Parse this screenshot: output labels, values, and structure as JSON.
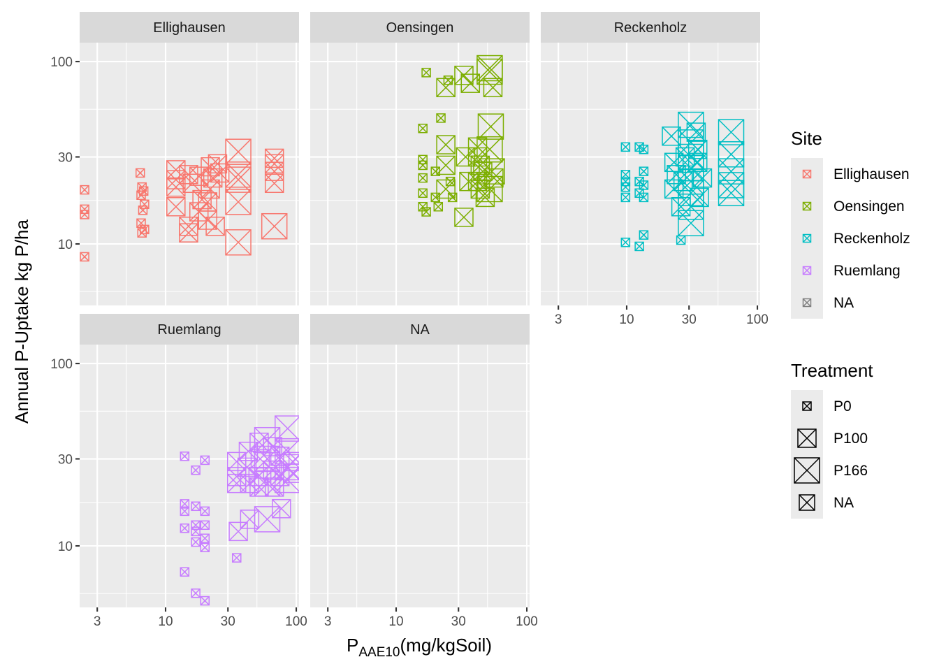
{
  "chart_data": {
    "type": "scatter",
    "facet_by": "Site",
    "x_scale": "log10",
    "y_scale": "log10",
    "xlabel": "P",
    "xlabel_sub": "AAE10",
    "xlabel_suffix": "(mg/kgSoil)",
    "ylabel": "Annual P-Uptake kg P/ha",
    "xlim": [
      2.2,
      105
    ],
    "ylim": [
      4.6,
      127
    ],
    "x_ticks": [
      3,
      10,
      30,
      100
    ],
    "x_tick_labels": [
      "3",
      "10",
      "30",
      "100"
    ],
    "y_ticks": [
      10,
      30,
      100
    ],
    "y_tick_labels": [
      "10",
      "30",
      "100"
    ],
    "panels": [
      {
        "name": "Ellighausen",
        "color": "#F8766D",
        "points": [
          {
            "x": 2.4,
            "y": 19.8,
            "t": "P0"
          },
          {
            "x": 2.4,
            "y": 15.5,
            "t": "P0"
          },
          {
            "x": 2.4,
            "y": 14.5,
            "t": "P0"
          },
          {
            "x": 2.4,
            "y": 8.5,
            "t": "P0"
          },
          {
            "x": 6.4,
            "y": 24.5,
            "t": "P0"
          },
          {
            "x": 6.6,
            "y": 20.5,
            "t": "P0"
          },
          {
            "x": 6.8,
            "y": 19.5,
            "t": "P0"
          },
          {
            "x": 6.5,
            "y": 18.5,
            "t": "P0"
          },
          {
            "x": 6.9,
            "y": 16.5,
            "t": "P0"
          },
          {
            "x": 6.7,
            "y": 15.3,
            "t": "P0"
          },
          {
            "x": 6.5,
            "y": 13.0,
            "t": "P0"
          },
          {
            "x": 6.9,
            "y": 12.0,
            "t": "P0"
          },
          {
            "x": 6.6,
            "y": 11.5,
            "t": "P0"
          },
          {
            "x": 12,
            "y": 25.5,
            "t": "P100"
          },
          {
            "x": 12,
            "y": 22.5,
            "t": "P100"
          },
          {
            "x": 12,
            "y": 20.5,
            "t": "P100"
          },
          {
            "x": 12,
            "y": 16.0,
            "t": "P100"
          },
          {
            "x": 15,
            "y": 24.0,
            "t": "P100"
          },
          {
            "x": 16,
            "y": 21.5,
            "t": "P100"
          },
          {
            "x": 15,
            "y": 12.5,
            "t": "P100"
          },
          {
            "x": 15,
            "y": 11.5,
            "t": "P100"
          },
          {
            "x": 18,
            "y": 23.5,
            "t": "P100"
          },
          {
            "x": 19,
            "y": 17.5,
            "t": "P100"
          },
          {
            "x": 18,
            "y": 15.0,
            "t": "P100"
          },
          {
            "x": 21,
            "y": 13.5,
            "t": "P100"
          },
          {
            "x": 22,
            "y": 26.5,
            "t": "P100"
          },
          {
            "x": 23,
            "y": 23.0,
            "t": "P100"
          },
          {
            "x": 22,
            "y": 20.0,
            "t": "P100"
          },
          {
            "x": 25,
            "y": 27.5,
            "t": "P100"
          },
          {
            "x": 26,
            "y": 24.5,
            "t": "P100"
          },
          {
            "x": 24,
            "y": 12.5,
            "t": "P100"
          },
          {
            "x": 21,
            "y": 17.0,
            "t": "P100"
          },
          {
            "x": 36,
            "y": 32.0,
            "t": "P166"
          },
          {
            "x": 36,
            "y": 24.0,
            "t": "P166"
          },
          {
            "x": 36,
            "y": 22.5,
            "t": "P166"
          },
          {
            "x": 36,
            "y": 17.0,
            "t": "P166"
          },
          {
            "x": 36,
            "y": 10.2,
            "t": "P166"
          },
          {
            "x": 68,
            "y": 29.5,
            "t": "P100"
          },
          {
            "x": 68,
            "y": 27.5,
            "t": "P100"
          },
          {
            "x": 68,
            "y": 25.0,
            "t": "P100"
          },
          {
            "x": 68,
            "y": 21.5,
            "t": "P100"
          },
          {
            "x": 68,
            "y": 12.5,
            "t": "P166"
          }
        ]
      },
      {
        "name": "Oensingen",
        "color": "#7CAE00",
        "points": [
          {
            "x": 17,
            "y": 87,
            "t": "P0"
          },
          {
            "x": 16,
            "y": 43,
            "t": "P0"
          },
          {
            "x": 16,
            "y": 29,
            "t": "P0"
          },
          {
            "x": 16,
            "y": 27,
            "t": "P0"
          },
          {
            "x": 16,
            "y": 23,
            "t": "P0"
          },
          {
            "x": 16,
            "y": 19,
            "t": "P0"
          },
          {
            "x": 16,
            "y": 16,
            "t": "P0"
          },
          {
            "x": 17,
            "y": 15,
            "t": "P0"
          },
          {
            "x": 22,
            "y": 49,
            "t": "P0"
          },
          {
            "x": 20,
            "y": 25,
            "t": "P0"
          },
          {
            "x": 20,
            "y": 18,
            "t": "P0"
          },
          {
            "x": 21,
            "y": 16,
            "t": "P0"
          },
          {
            "x": 25,
            "y": 79,
            "t": "P0"
          },
          {
            "x": 26,
            "y": 22,
            "t": "P0"
          },
          {
            "x": 27,
            "y": 18,
            "t": "P0"
          },
          {
            "x": 24,
            "y": 72,
            "t": "P100"
          },
          {
            "x": 24,
            "y": 35,
            "t": "P100"
          },
          {
            "x": 24,
            "y": 27,
            "t": "P100"
          },
          {
            "x": 24,
            "y": 20,
            "t": "P100"
          },
          {
            "x": 33,
            "y": 84,
            "t": "P100"
          },
          {
            "x": 37,
            "y": 76,
            "t": "P100"
          },
          {
            "x": 34,
            "y": 30,
            "t": "P100"
          },
          {
            "x": 36,
            "y": 22,
            "t": "P100"
          },
          {
            "x": 33,
            "y": 14,
            "t": "P100"
          },
          {
            "x": 42,
            "y": 34,
            "t": "P100"
          },
          {
            "x": 42,
            "y": 30,
            "t": "P100"
          },
          {
            "x": 44,
            "y": 27,
            "t": "P100"
          },
          {
            "x": 42,
            "y": 22,
            "t": "P100"
          },
          {
            "x": 46,
            "y": 25,
            "t": "P100"
          },
          {
            "x": 44,
            "y": 20,
            "t": "P100"
          },
          {
            "x": 48,
            "y": 18,
            "t": "P100"
          },
          {
            "x": 52,
            "y": 92,
            "t": "P166"
          },
          {
            "x": 52,
            "y": 88,
            "t": "P166"
          },
          {
            "x": 55,
            "y": 72,
            "t": "P100"
          },
          {
            "x": 53,
            "y": 44,
            "t": "P166"
          },
          {
            "x": 52,
            "y": 33,
            "t": "P166"
          },
          {
            "x": 54,
            "y": 25,
            "t": "P166"
          },
          {
            "x": 52,
            "y": 20,
            "t": "P166"
          },
          {
            "x": 56,
            "y": 23,
            "t": "P100"
          }
        ]
      },
      {
        "name": "Reckenholz",
        "color": "#00BFC4",
        "points": [
          {
            "x": 9.8,
            "y": 34,
            "t": "P0"
          },
          {
            "x": 9.8,
            "y": 24,
            "t": "P0"
          },
          {
            "x": 9.8,
            "y": 22,
            "t": "P0"
          },
          {
            "x": 9.8,
            "y": 20.5,
            "t": "P0"
          },
          {
            "x": 9.8,
            "y": 18,
            "t": "P0"
          },
          {
            "x": 9.8,
            "y": 10.2,
            "t": "P0"
          },
          {
            "x": 12.5,
            "y": 34,
            "t": "P0"
          },
          {
            "x": 13.5,
            "y": 33,
            "t": "P0"
          },
          {
            "x": 13.5,
            "y": 25,
            "t": "P0"
          },
          {
            "x": 12.5,
            "y": 22,
            "t": "P0"
          },
          {
            "x": 13.5,
            "y": 21,
            "t": "P0"
          },
          {
            "x": 12.5,
            "y": 19,
            "t": "P0"
          },
          {
            "x": 13.5,
            "y": 18,
            "t": "P0"
          },
          {
            "x": 13.5,
            "y": 11.2,
            "t": "P0"
          },
          {
            "x": 12.5,
            "y": 9.7,
            "t": "P0"
          },
          {
            "x": 26,
            "y": 10.5,
            "t": "P0"
          },
          {
            "x": 22,
            "y": 39,
            "t": "P100"
          },
          {
            "x": 23,
            "y": 28,
            "t": "P100"
          },
          {
            "x": 24,
            "y": 24,
            "t": "P100"
          },
          {
            "x": 23,
            "y": 20,
            "t": "P100"
          },
          {
            "x": 28,
            "y": 30,
            "t": "P100"
          },
          {
            "x": 27,
            "y": 22,
            "t": "P100"
          },
          {
            "x": 26,
            "y": 16,
            "t": "P100"
          },
          {
            "x": 31,
            "y": 45,
            "t": "P166"
          },
          {
            "x": 31,
            "y": 36,
            "t": "P166"
          },
          {
            "x": 31,
            "y": 30,
            "t": "P166"
          },
          {
            "x": 31,
            "y": 26,
            "t": "P166"
          },
          {
            "x": 31,
            "y": 22,
            "t": "P166"
          },
          {
            "x": 31,
            "y": 19,
            "t": "P166"
          },
          {
            "x": 31,
            "y": 16,
            "t": "P166"
          },
          {
            "x": 31,
            "y": 13,
            "t": "P166"
          },
          {
            "x": 35,
            "y": 33,
            "t": "P100"
          },
          {
            "x": 35,
            "y": 28,
            "t": "P100"
          },
          {
            "x": 38,
            "y": 23,
            "t": "P100"
          },
          {
            "x": 36,
            "y": 18,
            "t": "P100"
          },
          {
            "x": 34,
            "y": 41,
            "t": "P100"
          },
          {
            "x": 63,
            "y": 41,
            "t": "P166"
          },
          {
            "x": 63,
            "y": 31,
            "t": "P166"
          },
          {
            "x": 63,
            "y": 25,
            "t": "P166"
          },
          {
            "x": 63,
            "y": 21,
            "t": "P166"
          },
          {
            "x": 63,
            "y": 19,
            "t": "P166"
          }
        ]
      },
      {
        "name": "Ruemlang",
        "color": "#C77CFF",
        "points": [
          {
            "x": 14,
            "y": 31,
            "t": "P0"
          },
          {
            "x": 14,
            "y": 17,
            "t": "P0"
          },
          {
            "x": 14,
            "y": 15.5,
            "t": "P0"
          },
          {
            "x": 14,
            "y": 12.5,
            "t": "P0"
          },
          {
            "x": 14,
            "y": 7.2,
            "t": "P0"
          },
          {
            "x": 17,
            "y": 26,
            "t": "P0"
          },
          {
            "x": 17,
            "y": 16.5,
            "t": "P0"
          },
          {
            "x": 17,
            "y": 13,
            "t": "P0"
          },
          {
            "x": 17,
            "y": 12,
            "t": "P0"
          },
          {
            "x": 17,
            "y": 10.5,
            "t": "P0"
          },
          {
            "x": 17,
            "y": 5.5,
            "t": "P0"
          },
          {
            "x": 20,
            "y": 29.5,
            "t": "P0"
          },
          {
            "x": 20,
            "y": 15.5,
            "t": "P0"
          },
          {
            "x": 20,
            "y": 13,
            "t": "P0"
          },
          {
            "x": 20,
            "y": 11,
            "t": "P0"
          },
          {
            "x": 20,
            "y": 9.8,
            "t": "P0"
          },
          {
            "x": 20,
            "y": 5.0,
            "t": "P0"
          },
          {
            "x": 35,
            "y": 8.6,
            "t": "P0"
          },
          {
            "x": 35,
            "y": 29,
            "t": "P100"
          },
          {
            "x": 35,
            "y": 24,
            "t": "P100"
          },
          {
            "x": 35,
            "y": 22,
            "t": "P100"
          },
          {
            "x": 36,
            "y": 12,
            "t": "P100"
          },
          {
            "x": 43,
            "y": 33,
            "t": "P100"
          },
          {
            "x": 42,
            "y": 27,
            "t": "P100"
          },
          {
            "x": 44,
            "y": 22,
            "t": "P100"
          },
          {
            "x": 44,
            "y": 14,
            "t": "P100"
          },
          {
            "x": 52,
            "y": 37,
            "t": "P100"
          },
          {
            "x": 53,
            "y": 30,
            "t": "P100"
          },
          {
            "x": 51,
            "y": 24,
            "t": "P100"
          },
          {
            "x": 52,
            "y": 21,
            "t": "P100"
          },
          {
            "x": 60,
            "y": 38,
            "t": "P166"
          },
          {
            "x": 60,
            "y": 30,
            "t": "P166"
          },
          {
            "x": 60,
            "y": 22,
            "t": "P166"
          },
          {
            "x": 60,
            "y": 14,
            "t": "P166"
          },
          {
            "x": 66,
            "y": 35,
            "t": "P100"
          },
          {
            "x": 66,
            "y": 26,
            "t": "P100"
          },
          {
            "x": 68,
            "y": 21,
            "t": "P100"
          },
          {
            "x": 75,
            "y": 31,
            "t": "P100"
          },
          {
            "x": 75,
            "y": 24,
            "t": "P100"
          },
          {
            "x": 77,
            "y": 16,
            "t": "P100"
          },
          {
            "x": 86,
            "y": 44,
            "t": "P166"
          },
          {
            "x": 86,
            "y": 33,
            "t": "P166"
          },
          {
            "x": 86,
            "y": 27,
            "t": "P166"
          },
          {
            "x": 86,
            "y": 23,
            "t": "P166"
          },
          {
            "x": 94,
            "y": 29,
            "t": "P100"
          },
          {
            "x": 94,
            "y": 25,
            "t": "P100"
          }
        ]
      },
      {
        "name": "NA",
        "color": "#7F7F7F",
        "points": []
      }
    ],
    "legend": {
      "placement": "right",
      "site": {
        "title": "Site",
        "entries": [
          {
            "label": "Ellighausen",
            "color": "#F8766D"
          },
          {
            "label": "Oensingen",
            "color": "#7CAE00"
          },
          {
            "label": "Reckenholz",
            "color": "#00BFC4"
          },
          {
            "label": "Ruemlang",
            "color": "#C77CFF"
          },
          {
            "label": "NA",
            "color": "#7F7F7F"
          }
        ]
      },
      "treatment": {
        "title": "Treatment",
        "entries": [
          {
            "label": "P0",
            "size": "small"
          },
          {
            "label": "P100",
            "size": "medium"
          },
          {
            "label": "P166",
            "size": "large"
          },
          {
            "label": "NA",
            "size": "medium-small"
          }
        ]
      }
    },
    "grid": true,
    "theme": "grey background, white gridlines"
  }
}
